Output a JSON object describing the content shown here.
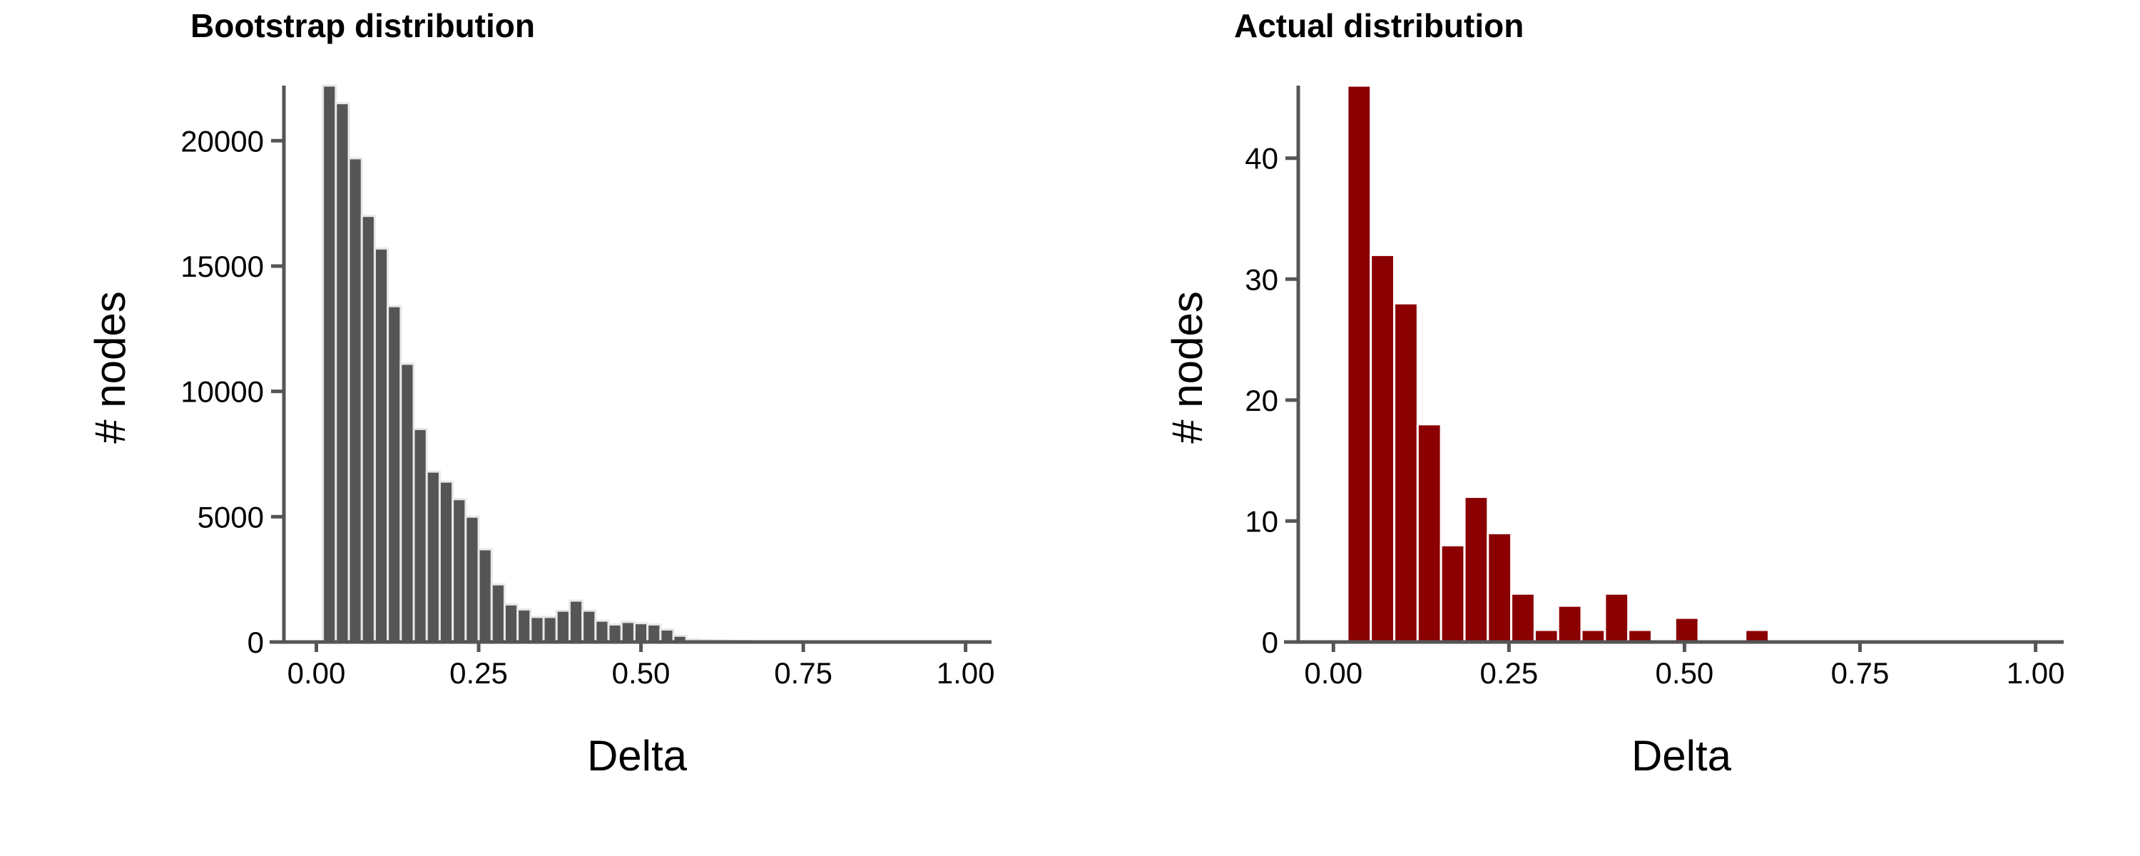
{
  "chart_data": [
    {
      "type": "bar",
      "title": "Bootstrap distribution",
      "xlabel": "Delta",
      "ylabel": "# nodes",
      "xlim": [
        -0.05,
        1.04
      ],
      "ylim": [
        0,
        22200
      ],
      "x_ticks": [
        0.0,
        0.25,
        0.5,
        0.75,
        1.0
      ],
      "x_tick_labels": [
        "0.00",
        "0.25",
        "0.50",
        "0.75",
        "1.00"
      ],
      "y_ticks": [
        0,
        5000,
        10000,
        15000,
        20000
      ],
      "y_tick_labels": [
        "0",
        "5000",
        "10000",
        "15000",
        "20000"
      ],
      "bin_width": 0.02,
      "bins_start": [
        0.01,
        0.03,
        0.05,
        0.07,
        0.09,
        0.11,
        0.13,
        0.15,
        0.17,
        0.19,
        0.21,
        0.23,
        0.25,
        0.27,
        0.29,
        0.31,
        0.33,
        0.35,
        0.37,
        0.39,
        0.41,
        0.43,
        0.45,
        0.47,
        0.49,
        0.51,
        0.53,
        0.55,
        0.57,
        0.59,
        0.61,
        0.63,
        0.65,
        0.67
      ],
      "values": [
        22200,
        21500,
        19300,
        17000,
        15700,
        13400,
        11100,
        8500,
        6800,
        6400,
        5700,
        5000,
        3700,
        2300,
        1500,
        1300,
        1000,
        1000,
        1250,
        1650,
        1250,
        850,
        700,
        800,
        750,
        700,
        500,
        250,
        100,
        80,
        60,
        50,
        40,
        30
      ],
      "bar_color": "#555555",
      "bar_edge_color": "#e8e8e8",
      "grid": false
    },
    {
      "type": "bar",
      "title": "Actual distribution",
      "xlabel": "Delta",
      "ylabel": "# nodes",
      "xlim": [
        -0.05,
        1.04
      ],
      "ylim": [
        0,
        46
      ],
      "x_ticks": [
        0.0,
        0.25,
        0.5,
        0.75,
        1.0
      ],
      "x_tick_labels": [
        "0.00",
        "0.25",
        "0.50",
        "0.75",
        "1.00"
      ],
      "y_ticks": [
        0,
        10,
        20,
        30,
        40
      ],
      "y_tick_labels": [
        "0",
        "10",
        "20",
        "30",
        "40"
      ],
      "bin_width": 0.0333,
      "bins_start": [
        0.02,
        0.0533,
        0.0867,
        0.12,
        0.1533,
        0.1867,
        0.22,
        0.2533,
        0.2867,
        0.32,
        0.3533,
        0.3867,
        0.42,
        0.4533,
        0.4867,
        0.52,
        0.5533,
        0.5867
      ],
      "values": [
        46,
        32,
        28,
        18,
        8,
        12,
        9,
        4,
        1,
        3,
        1,
        4,
        1,
        0,
        2,
        0,
        0,
        1
      ],
      "bar_color": "#8b0000",
      "bar_edge_color": "#ffffff",
      "grid": false
    }
  ]
}
